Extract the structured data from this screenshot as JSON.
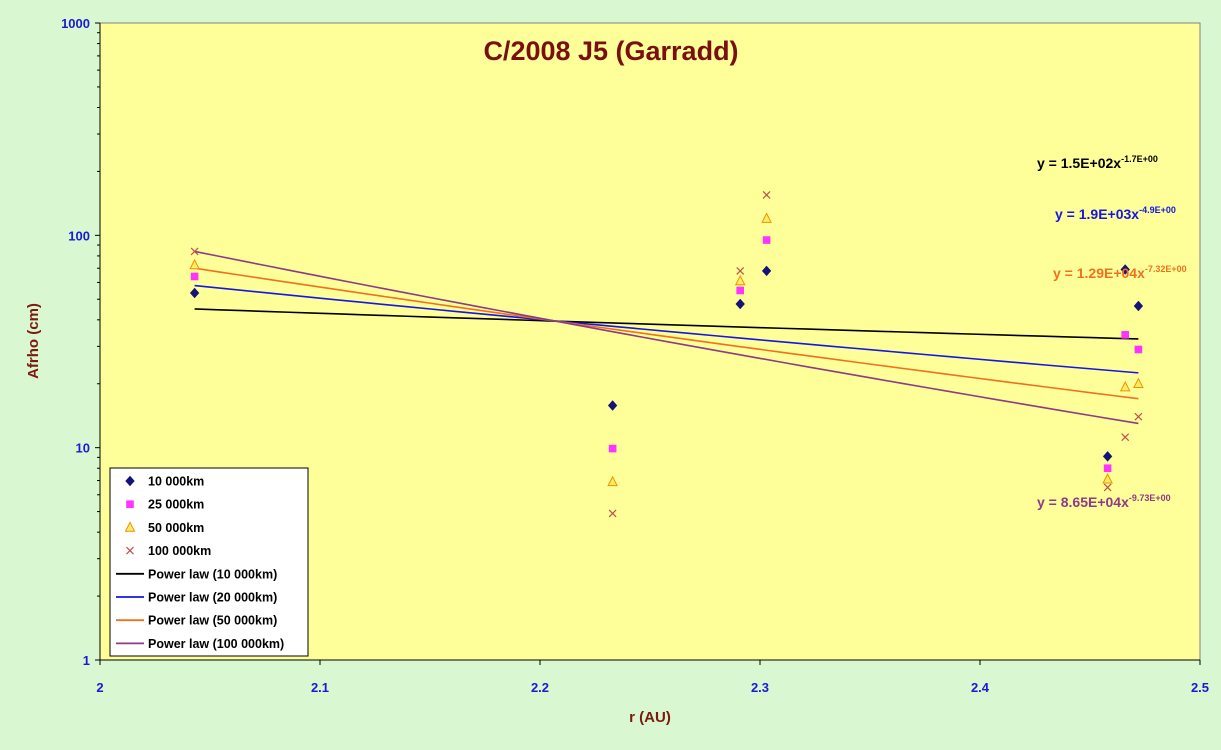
{
  "chart_data": {
    "type": "scatter",
    "title": "C/2008 J5 (Garradd)",
    "xlabel": "r (AU)",
    "ylabel": "Afrho (cm)",
    "xlim": [
      2,
      2.5
    ],
    "ylim": [
      1,
      1000
    ],
    "yscale": "log",
    "x_ticks": [
      "2",
      "2.1",
      "2.2",
      "2.3",
      "2.4",
      "2.5"
    ],
    "y_ticks": [
      "1",
      "10",
      "100",
      "1000"
    ],
    "legend_position": "bottom-left",
    "series": [
      {
        "name": "10 000km",
        "marker": "diamond",
        "color": "#141478",
        "points": [
          [
            2.043,
            53.5
          ],
          [
            2.233,
            15.8
          ],
          [
            2.291,
            47.5
          ],
          [
            2.303,
            68
          ],
          [
            2.458,
            9.1
          ],
          [
            2.466,
            69
          ],
          [
            2.472,
            46.5
          ]
        ]
      },
      {
        "name": "25 000km",
        "marker": "square",
        "color": "#ff33ff",
        "points": [
          [
            2.043,
            64
          ],
          [
            2.233,
            9.9
          ],
          [
            2.291,
            55
          ],
          [
            2.303,
            95
          ],
          [
            2.458,
            8.0
          ],
          [
            2.466,
            34
          ],
          [
            2.472,
            29
          ]
        ]
      },
      {
        "name": "50 000km",
        "marker": "triangle",
        "color": "#f09000",
        "fill": "#ffee66",
        "points": [
          [
            2.043,
            72.5
          ],
          [
            2.233,
            6.9
          ],
          [
            2.291,
            61
          ],
          [
            2.303,
            120
          ],
          [
            2.458,
            7.1
          ],
          [
            2.466,
            19.3
          ],
          [
            2.472,
            20
          ]
        ]
      },
      {
        "name": "100 000km",
        "marker": "x",
        "color": "#c0504d",
        "points": [
          [
            2.043,
            84
          ],
          [
            2.233,
            4.9
          ],
          [
            2.291,
            68
          ],
          [
            2.303,
            155
          ],
          [
            2.458,
            6.5
          ],
          [
            2.466,
            11.2
          ],
          [
            2.472,
            14
          ]
        ]
      }
    ],
    "trendlines": [
      {
        "name": "Power law (10 000km)",
        "color": "#000000",
        "x_range": [
          2.043,
          2.472
        ],
        "y_range": [
          45,
          32.5
        ]
      },
      {
        "name": "Power law (20 000km)",
        "color": "#1515e6",
        "x_range": [
          2.043,
          2.472
        ],
        "y_range": [
          58,
          22.5
        ]
      },
      {
        "name": "Power law (50 000km)",
        "color": "#f07020",
        "x_range": [
          2.043,
          2.472
        ],
        "y_range": [
          70,
          17
        ]
      },
      {
        "name": "Power law (100 000km)",
        "color": "#8e3a86",
        "x_range": [
          2.043,
          2.472
        ],
        "y_range": [
          84,
          13
        ]
      }
    ],
    "annotations": [
      {
        "text": "y = 1.5E+02x",
        "sup": "-1.7E+00",
        "color": "#000000"
      },
      {
        "text": "y = 1.9E+03x",
        "sup": "-4.9E+00",
        "color": "#1515e6"
      },
      {
        "text": "y = 1.29E+04x",
        "sup": "-7.32E+00",
        "color": "#f07020"
      },
      {
        "text": "y = 8.65E+04x",
        "sup": "-9.73E+00",
        "color": "#8e3a86"
      }
    ],
    "colors": {
      "plot_background": "#ffff99",
      "figure_background": "#d9f7d0",
      "tick_text": "#1a1ad8",
      "label_text": "#7a1a10"
    }
  }
}
